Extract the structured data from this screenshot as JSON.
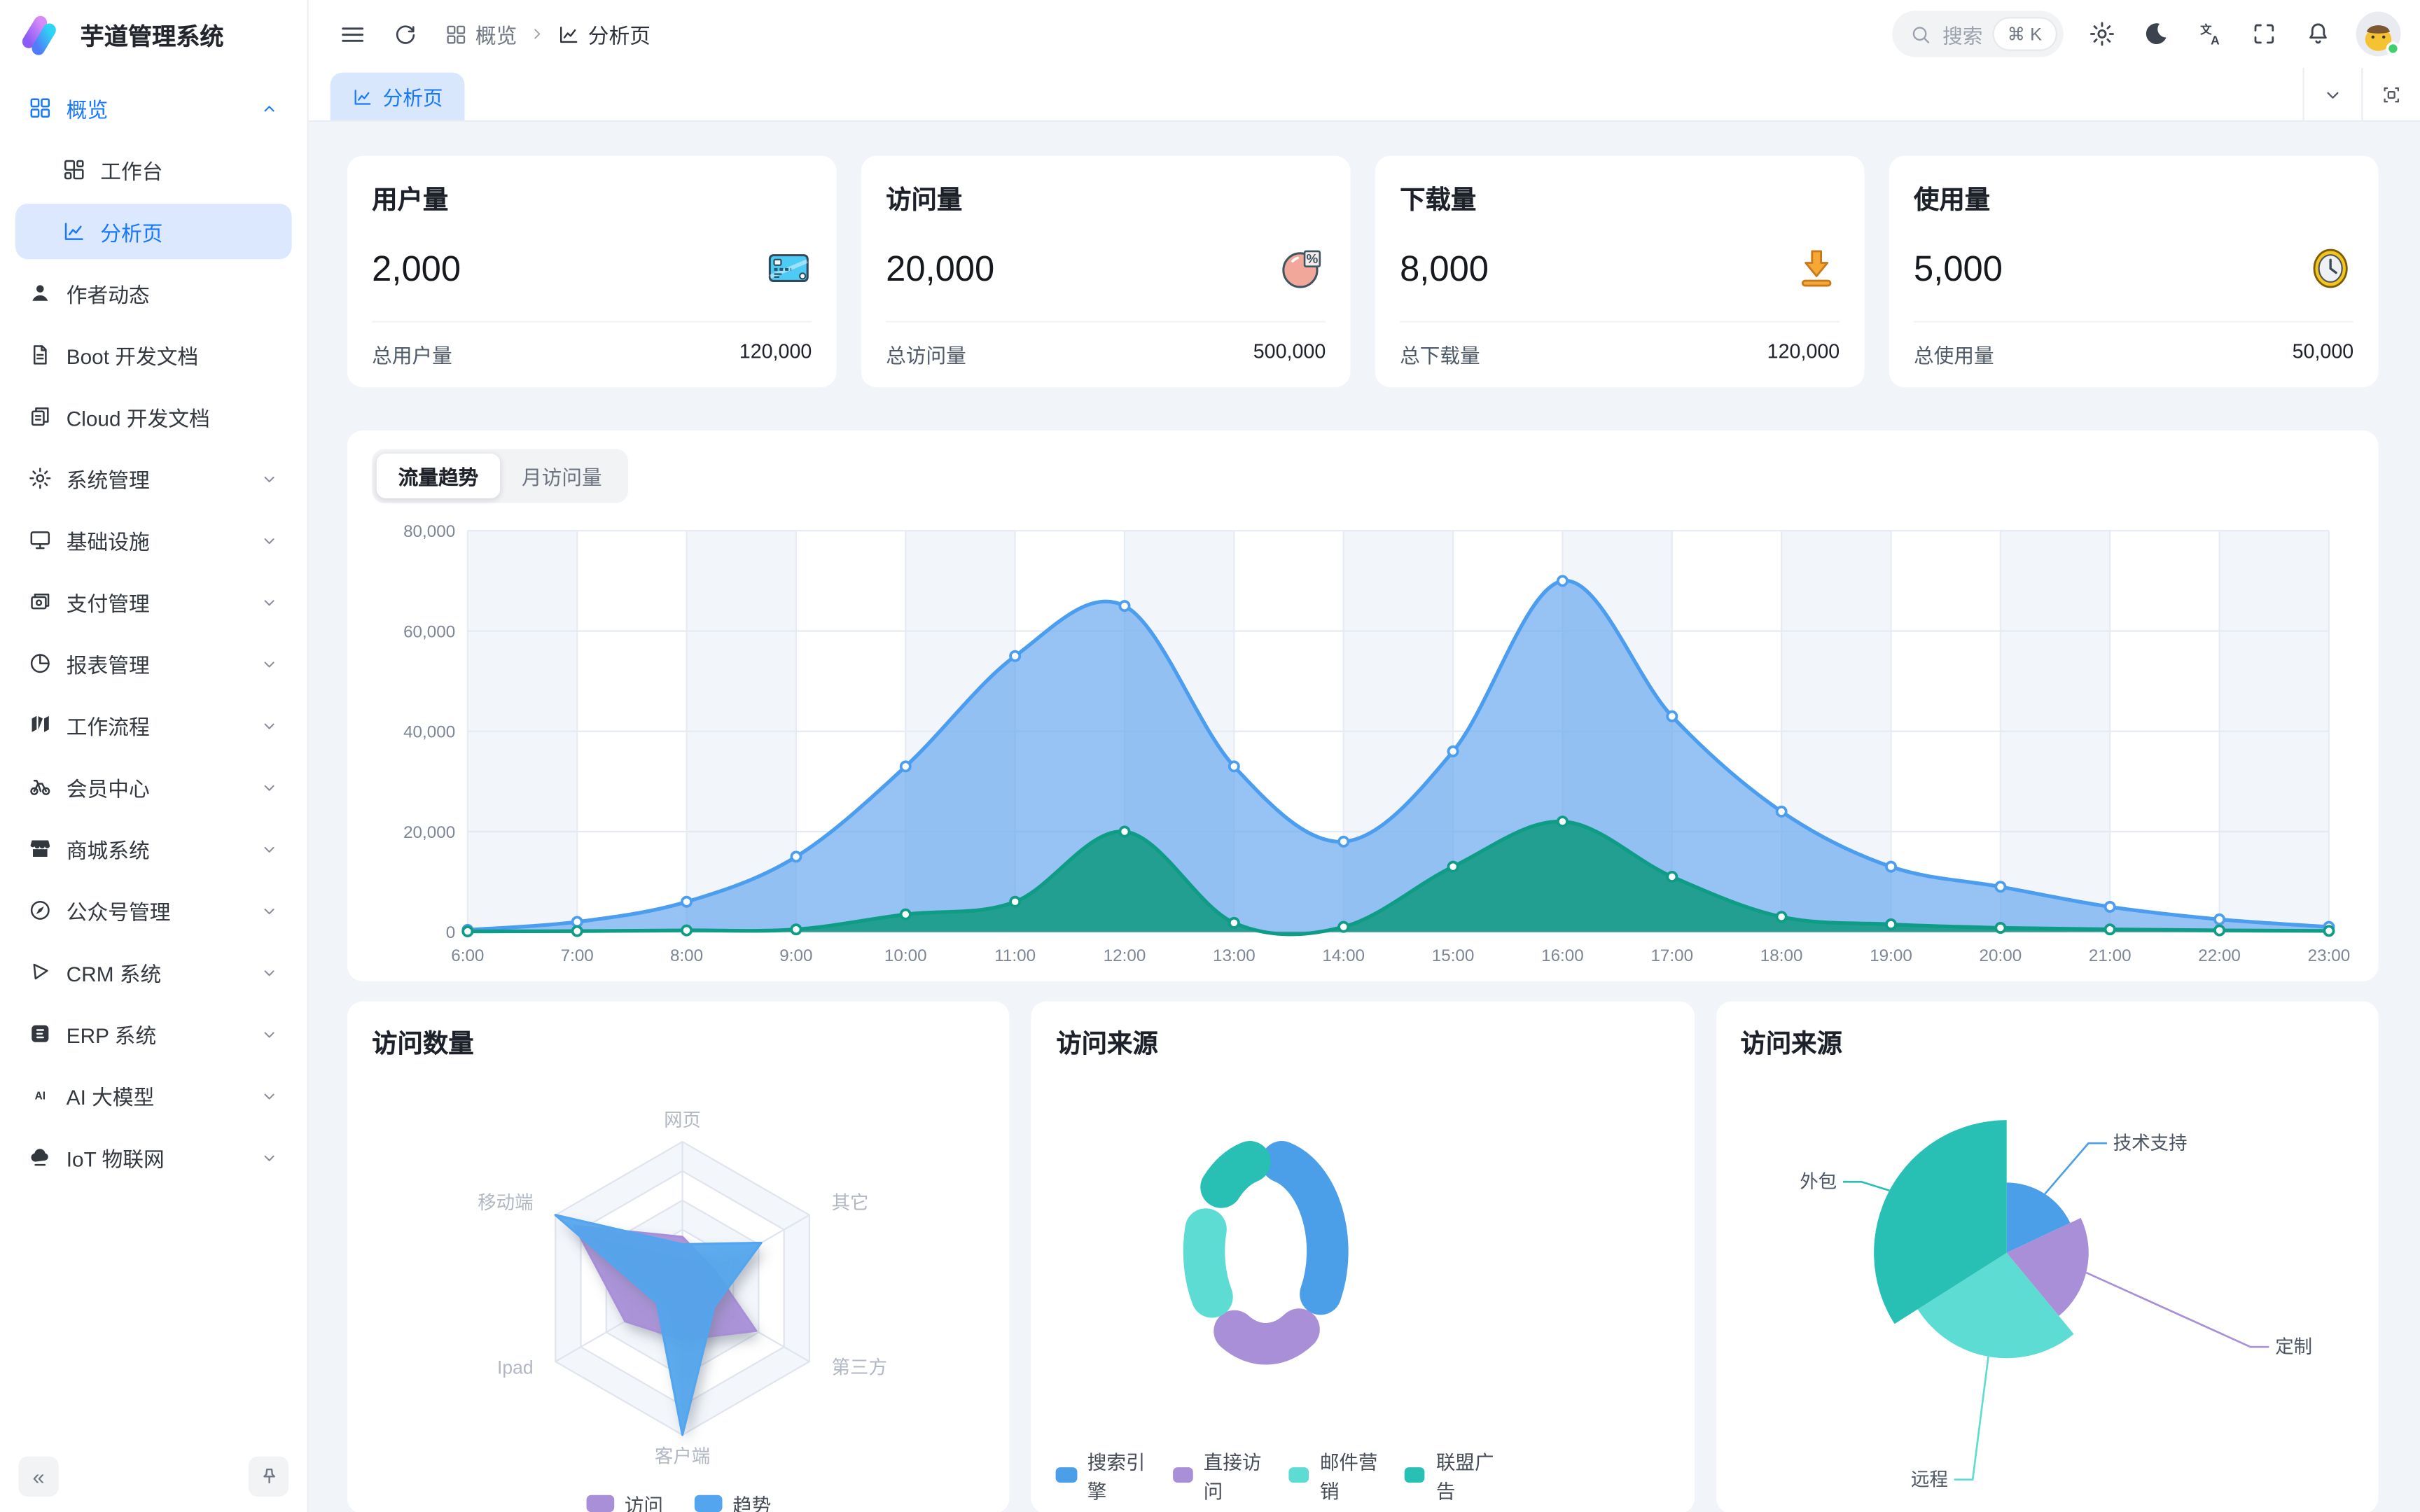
{
  "app": {
    "title": "芋道管理系统"
  },
  "colors": {
    "primary": "#1677ff",
    "trend_blue": "#4b9df0",
    "trend_green": "#0f9c86",
    "series_blue": "#4b9fe8",
    "series_purple": "#a88fd8",
    "series_cyan": "#5cdcd3",
    "series_teal": "#28bfb4"
  },
  "sidebar": {
    "collapse_label": "«",
    "items": [
      {
        "label": "概览",
        "icon": "grid",
        "type": "parent",
        "expanded": true,
        "text_active": true
      },
      {
        "label": "工作台",
        "icon": "workbench",
        "type": "sub",
        "active": false
      },
      {
        "label": "分析页",
        "icon": "analysis",
        "type": "sub",
        "active": true
      },
      {
        "label": "作者动态",
        "icon": "user",
        "type": "item"
      },
      {
        "label": "Boot 开发文档",
        "icon": "doc",
        "type": "item"
      },
      {
        "label": "Cloud 开发文档",
        "icon": "docs",
        "type": "item"
      },
      {
        "label": "系统管理",
        "icon": "gear",
        "type": "parent"
      },
      {
        "label": "基础设施",
        "icon": "monitor",
        "type": "parent"
      },
      {
        "label": "支付管理",
        "icon": "wallet",
        "type": "parent"
      },
      {
        "label": "报表管理",
        "icon": "pie",
        "type": "parent"
      },
      {
        "label": "工作流程",
        "icon": "workflow",
        "type": "parent"
      },
      {
        "label": "会员中心",
        "icon": "member",
        "type": "parent"
      },
      {
        "label": "商城系统",
        "icon": "store",
        "type": "parent"
      },
      {
        "label": "公众号管理",
        "icon": "compass",
        "type": "parent"
      },
      {
        "label": "CRM 系统",
        "icon": "crm",
        "type": "parent"
      },
      {
        "label": "ERP 系统",
        "icon": "erp",
        "type": "parent"
      },
      {
        "label": "AI 大模型",
        "icon": "ai",
        "type": "parent"
      },
      {
        "label": "IoT 物联网",
        "icon": "iot",
        "type": "parent"
      }
    ]
  },
  "header": {
    "breadcrumb": [
      {
        "label": "概览",
        "icon": "grid"
      },
      {
        "label": "分析页",
        "icon": "analysis"
      }
    ],
    "search": {
      "placeholder": "搜索",
      "shortcut": "⌘ K"
    },
    "action_icons": [
      "gear",
      "moon",
      "translate",
      "fullscreen",
      "bell",
      "avatar"
    ]
  },
  "tabbar": {
    "active_tab": "分析页",
    "actions": [
      "chevron-down",
      "maximize"
    ]
  },
  "stats": [
    {
      "title": "用户量",
      "value": "2,000",
      "icon": "credit-card",
      "footer_label": "总用户量",
      "footer_value": "120,000"
    },
    {
      "title": "访问量",
      "value": "20,000",
      "icon": "pie-percent",
      "footer_label": "总访问量",
      "footer_value": "500,000"
    },
    {
      "title": "下载量",
      "value": "8,000",
      "icon": "download",
      "footer_label": "总下载量",
      "footer_value": "120,000"
    },
    {
      "title": "使用量",
      "value": "5,000",
      "icon": "clock",
      "footer_label": "总使用量",
      "footer_value": "50,000"
    }
  ],
  "trend": {
    "tabs": [
      "流量趋势",
      "月访问量"
    ],
    "active_tab": "流量趋势",
    "chart_data": {
      "type": "area",
      "x": [
        "6:00",
        "7:00",
        "8:00",
        "9:00",
        "10:00",
        "11:00",
        "12:00",
        "13:00",
        "14:00",
        "15:00",
        "16:00",
        "17:00",
        "18:00",
        "19:00",
        "20:00",
        "21:00",
        "22:00",
        "23:00"
      ],
      "series": [
        {
          "name": "blue",
          "color": "#4b9df0",
          "values": [
            400,
            2000,
            6000,
            15000,
            33000,
            55000,
            65000,
            33000,
            18000,
            36000,
            70000,
            43000,
            24000,
            13000,
            9000,
            5000,
            2500,
            1000
          ]
        },
        {
          "name": "green",
          "color": "#0f9c86",
          "values": [
            100,
            150,
            300,
            500,
            3500,
            6000,
            20000,
            1800,
            1000,
            13000,
            22000,
            11000,
            3000,
            1500,
            800,
            500,
            300,
            200
          ]
        }
      ],
      "ylim": [
        0,
        80000
      ],
      "yticks": [
        "0",
        "20,000",
        "40,000",
        "60,000",
        "80,000"
      ],
      "grid": true,
      "legend_position": "none"
    }
  },
  "panels": {
    "radar": {
      "title": "访问数量",
      "chart_data": {
        "type": "radar",
        "indicators": [
          "网页",
          "其它",
          "第三方",
          "客户端",
          "Ipad",
          "移动端"
        ],
        "max": 100,
        "series": [
          {
            "name": "访问",
            "color": "#a88fd8",
            "values": [
              35,
              25,
              58,
              35,
              45,
              85
            ]
          },
          {
            "name": "趋势",
            "color": "#52a5ee",
            "values": [
              30,
              62,
              25,
              100,
              20,
              100
            ]
          }
        ],
        "legend_position": "bottom"
      }
    },
    "donut": {
      "title": "访问来源",
      "chart_data": {
        "type": "pie",
        "donut": true,
        "items": [
          {
            "name": "搜索引擎",
            "value": 1048,
            "color": "#4b9fe8"
          },
          {
            "name": "直接访问",
            "value": 735,
            "color": "#a88fd8"
          },
          {
            "name": "邮件营销",
            "value": 580,
            "color": "#5cdcd3"
          },
          {
            "name": "联盟广告",
            "value": 484,
            "color": "#28bfb4"
          }
        ],
        "legend_position": "bottom"
      }
    },
    "rose": {
      "title": "访问来源",
      "chart_data": {
        "type": "pie",
        "rose": true,
        "items": [
          {
            "name": "技术支持",
            "value": 18,
            "color": "#4b9fe8"
          },
          {
            "name": "定制",
            "value": 21,
            "color": "#a88fd8"
          },
          {
            "name": "远程",
            "value": 27,
            "color": "#5cdcd3"
          },
          {
            "name": "外包",
            "value": 34,
            "color": "#28bfb4"
          }
        ],
        "legend_position": "labels"
      }
    }
  }
}
